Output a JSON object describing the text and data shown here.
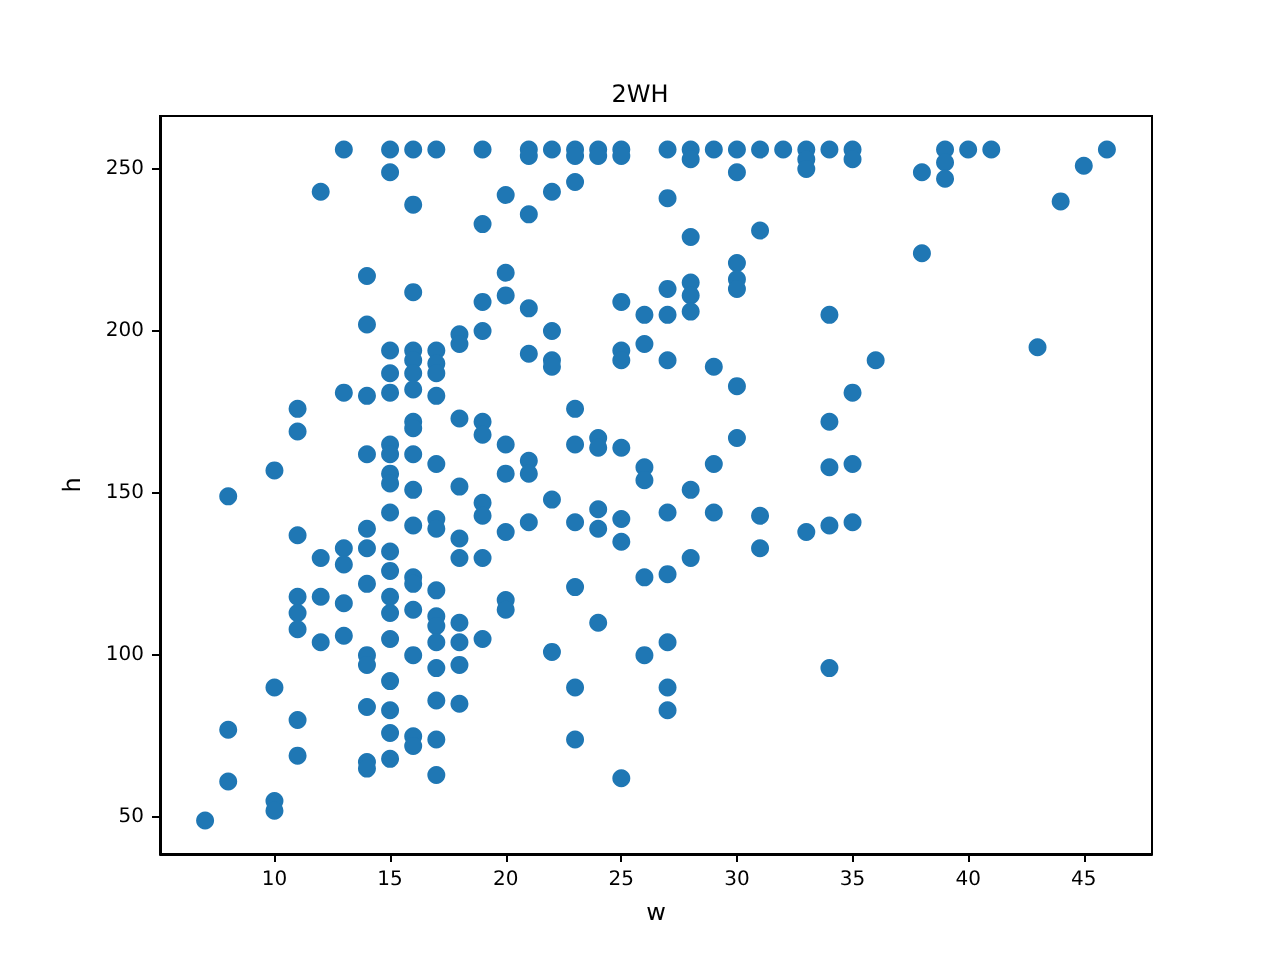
{
  "chart_data": {
    "type": "scatter",
    "title": "2WH",
    "xlabel": "w",
    "ylabel": "h",
    "color": "#1f77b4",
    "marker": "circle",
    "grid": false,
    "xlim": [
      5.05,
      47.95
    ],
    "ylim": [
      38.65,
      266.35
    ],
    "xticks": [
      10,
      15,
      20,
      25,
      30,
      35,
      40,
      45
    ],
    "yticks": [
      50,
      100,
      150,
      200,
      250
    ],
    "x": [
      7,
      8,
      8,
      8,
      10,
      10,
      10,
      10,
      11,
      11,
      11,
      11,
      11,
      11,
      11,
      11,
      12,
      12,
      12,
      12,
      13,
      13,
      13,
      13,
      13,
      13,
      14,
      14,
      14,
      14,
      14,
      14,
      14,
      14,
      14,
      14,
      14,
      14,
      15,
      15,
      15,
      15,
      15,
      15,
      15,
      15,
      15,
      15,
      15,
      15,
      15,
      15,
      15,
      15,
      15,
      15,
      15,
      16,
      16,
      16,
      16,
      16,
      16,
      16,
      16,
      16,
      16,
      16,
      16,
      16,
      16,
      16,
      16,
      16,
      16,
      17,
      17,
      17,
      17,
      17,
      17,
      17,
      17,
      17,
      17,
      17,
      17,
      17,
      17,
      17,
      17,
      18,
      18,
      18,
      18,
      18,
      18,
      18,
      18,
      18,
      18,
      19,
      19,
      19,
      19,
      19,
      19,
      19,
      19,
      19,
      19,
      20,
      20,
      20,
      20,
      20,
      20,
      20,
      20,
      21,
      21,
      21,
      21,
      21,
      21,
      21,
      21,
      22,
      22,
      22,
      22,
      22,
      22,
      22,
      23,
      23,
      23,
      23,
      23,
      23,
      23,
      23,
      23,
      24,
      24,
      24,
      24,
      24,
      24,
      24,
      25,
      25,
      25,
      25,
      25,
      25,
      25,
      25,
      25,
      26,
      26,
      26,
      26,
      26,
      26,
      27,
      27,
      27,
      27,
      27,
      27,
      27,
      27,
      27,
      27,
      28,
      28,
      28,
      28,
      28,
      28,
      28,
      28,
      29,
      29,
      29,
      29,
      30,
      30,
      30,
      30,
      30,
      30,
      30,
      31,
      31,
      31,
      31,
      32,
      33,
      33,
      33,
      33,
      34,
      34,
      34,
      34,
      34,
      34,
      35,
      35,
      35,
      35,
      35,
      36,
      38,
      38,
      39,
      39,
      39,
      40,
      41,
      43,
      44,
      45,
      46
    ],
    "values": [
      49,
      149,
      77,
      61,
      157,
      90,
      55,
      52,
      176,
      169,
      137,
      118,
      113,
      108,
      80,
      69,
      243,
      130,
      118,
      104,
      256,
      181,
      133,
      128,
      116,
      106,
      217,
      202,
      180,
      162,
      139,
      133,
      122,
      100,
      97,
      84,
      67,
      65,
      256,
      249,
      194,
      187,
      181,
      165,
      162,
      156,
      153,
      144,
      132,
      126,
      118,
      113,
      105,
      92,
      83,
      76,
      68,
      256,
      239,
      212,
      194,
      191,
      187,
      182,
      172,
      170,
      162,
      151,
      140,
      124,
      122,
      114,
      100,
      75,
      72,
      256,
      194,
      190,
      187,
      180,
      159,
      142,
      139,
      120,
      112,
      109,
      104,
      96,
      86,
      74,
      63,
      199,
      196,
      173,
      152,
      136,
      130,
      110,
      104,
      97,
      85,
      256,
      233,
      209,
      200,
      172,
      168,
      147,
      143,
      130,
      105,
      242,
      218,
      211,
      165,
      156,
      138,
      117,
      114,
      256,
      254,
      236,
      207,
      193,
      160,
      156,
      141,
      256,
      243,
      200,
      191,
      189,
      148,
      101,
      256,
      254,
      246,
      176,
      165,
      141,
      121,
      90,
      74,
      256,
      254,
      167,
      164,
      145,
      139,
      110,
      256,
      254,
      209,
      194,
      191,
      164,
      142,
      135,
      62,
      205,
      196,
      158,
      154,
      124,
      100,
      256,
      241,
      213,
      205,
      191,
      144,
      125,
      104,
      90,
      83,
      256,
      253,
      229,
      215,
      211,
      206,
      151,
      130,
      256,
      189,
      159,
      144,
      256,
      249,
      221,
      216,
      213,
      183,
      167,
      256,
      231,
      143,
      133,
      256,
      256,
      253,
      250,
      138,
      256,
      205,
      172,
      158,
      140,
      96,
      256,
      253,
      181,
      159,
      141,
      191,
      249,
      224,
      256,
      252,
      247,
      256,
      256,
      195,
      240,
      251,
      256
    ]
  }
}
